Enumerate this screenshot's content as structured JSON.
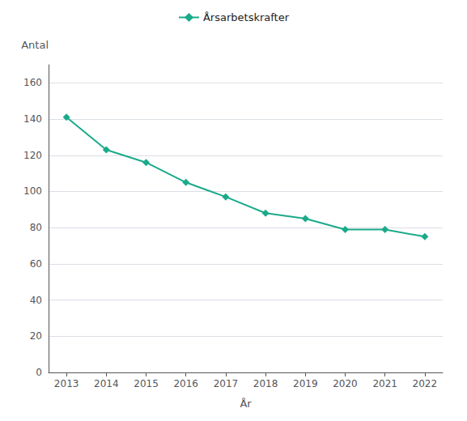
{
  "chart_data": {
    "type": "line",
    "x": [
      2013,
      2014,
      2015,
      2016,
      2017,
      2018,
      2019,
      2020,
      2021,
      2022
    ],
    "series": [
      {
        "name": "Årsarbetskrafter",
        "color": "#1aaa8a",
        "marker": "diamond",
        "values": [
          141,
          123,
          116,
          105,
          97,
          88,
          85,
          79,
          79,
          75
        ]
      }
    ],
    "xlabel": "År",
    "ylabel": "Antal",
    "xlim": [
      2012.55,
      2022.45
    ],
    "xticks": [
      2013,
      2014,
      2015,
      2016,
      2017,
      2018,
      2019,
      2020,
      2021,
      2022
    ],
    "ylim": [
      0,
      170
    ],
    "yticks": [
      0,
      20,
      40,
      60,
      80,
      100,
      120,
      140,
      160
    ],
    "grid": true,
    "legend": "top"
  }
}
